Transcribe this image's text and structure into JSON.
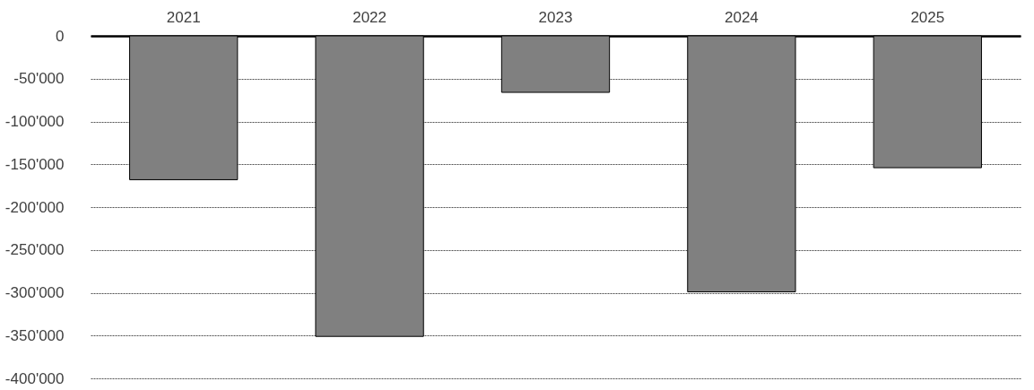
{
  "chart_data": {
    "type": "bar",
    "categories": [
      "2021",
      "2022",
      "2023",
      "2024",
      "2025"
    ],
    "values": [
      -168000,
      -351000,
      -66000,
      -299000,
      -154000
    ],
    "color": "#808080",
    "ylim": [
      -400000,
      0
    ],
    "yticks": [
      {
        "value": -400000,
        "label": "-400'000"
      },
      {
        "value": -350000,
        "label": "-350'000"
      },
      {
        "value": -300000,
        "label": "-300'000"
      },
      {
        "value": -250000,
        "label": "-250'000"
      },
      {
        "value": -200000,
        "label": "-200'000"
      },
      {
        "value": -150000,
        "label": "-150'000"
      },
      {
        "value": -100000,
        "label": "-100'000"
      },
      {
        "value": -50000,
        "label": "-50'000"
      },
      0
    ],
    "grid": "y"
  }
}
